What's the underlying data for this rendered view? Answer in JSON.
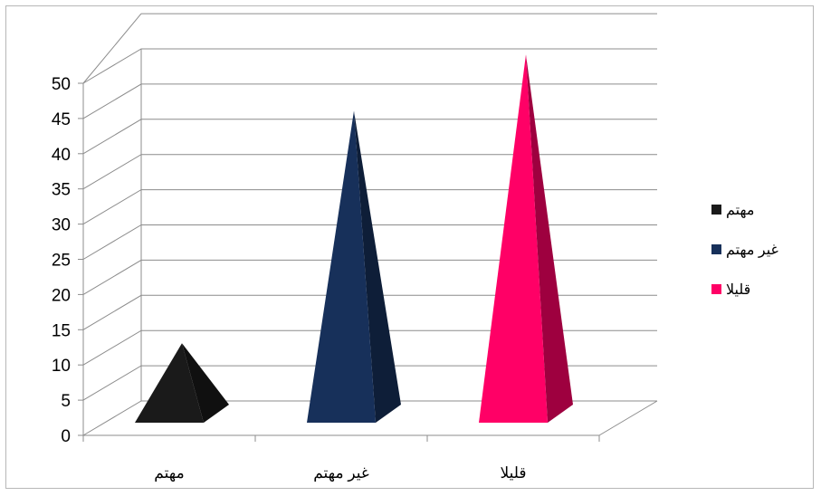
{
  "chart_data": {
    "type": "bar",
    "bar_shape": "pyramid-3d",
    "categories": [
      "مهتم",
      "غير مهتم",
      "قليلا"
    ],
    "values": [
      10,
      43,
      51
    ],
    "colors": [
      "#1a1a1a",
      "#17305a",
      "#ff0066"
    ],
    "ylim": [
      0,
      50
    ],
    "yticks": [
      "0",
      "5",
      "10",
      "15",
      "20",
      "25",
      "30",
      "35",
      "40",
      "45",
      "50"
    ],
    "grid": true,
    "legend_position": "right",
    "legend": [
      "مهتم",
      "غير مهتم",
      "قليلا"
    ]
  }
}
